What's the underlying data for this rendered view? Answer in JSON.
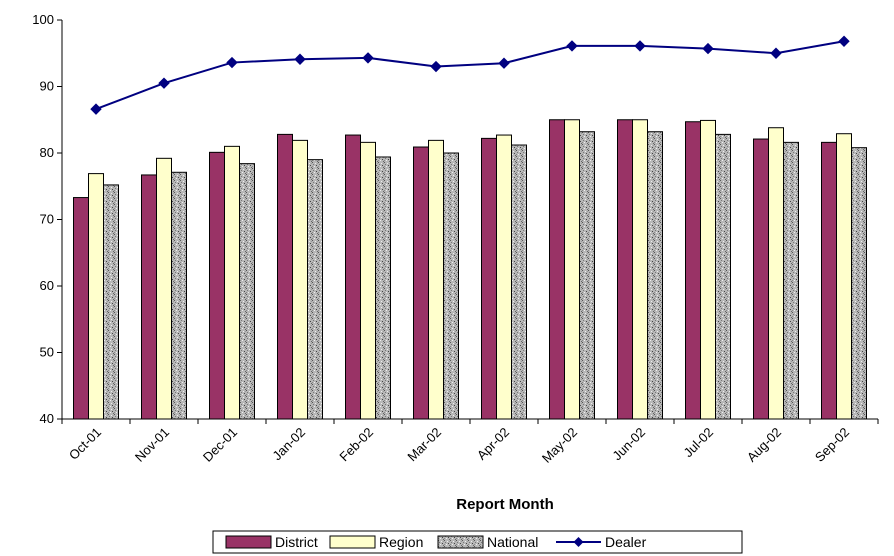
{
  "chart_data": {
    "type": "bar",
    "title": "",
    "xlabel": "Report Month",
    "ylabel": "",
    "ylim": [
      40,
      100
    ],
    "yticks": [
      40,
      50,
      60,
      70,
      80,
      90,
      100
    ],
    "grid": false,
    "legend_position": "bottom",
    "categories": [
      "Oct-01",
      "Nov-01",
      "Dec-01",
      "Jan-02",
      "Feb-02",
      "Mar-02",
      "Apr-02",
      "May-02",
      "Jun-02",
      "Jul-02",
      "Aug-02",
      "Sep-02"
    ],
    "series": [
      {
        "name": "District",
        "kind": "bar",
        "color": "#993366",
        "values": [
          73.3,
          76.7,
          80.1,
          82.8,
          82.7,
          80.9,
          82.2,
          85.0,
          85.0,
          84.7,
          82.1,
          81.6
        ]
      },
      {
        "name": "Region",
        "kind": "bar",
        "color": "#FFFFCC",
        "values": [
          76.9,
          79.2,
          81.0,
          81.9,
          81.6,
          81.9,
          82.7,
          85.0,
          85.0,
          84.9,
          83.8,
          82.9
        ]
      },
      {
        "name": "National",
        "kind": "bar",
        "color": "#A8A8A8",
        "pattern": "granite",
        "values": [
          75.2,
          77.1,
          78.4,
          79.0,
          79.4,
          80.0,
          81.2,
          83.2,
          83.2,
          82.8,
          81.6,
          80.8
        ]
      },
      {
        "name": "Dealer",
        "kind": "line",
        "color": "#000080",
        "marker": "diamond",
        "values": [
          86.6,
          90.5,
          93.6,
          94.1,
          94.3,
          93.0,
          93.5,
          96.1,
          96.1,
          95.7,
          95.0,
          96.8
        ]
      }
    ]
  }
}
